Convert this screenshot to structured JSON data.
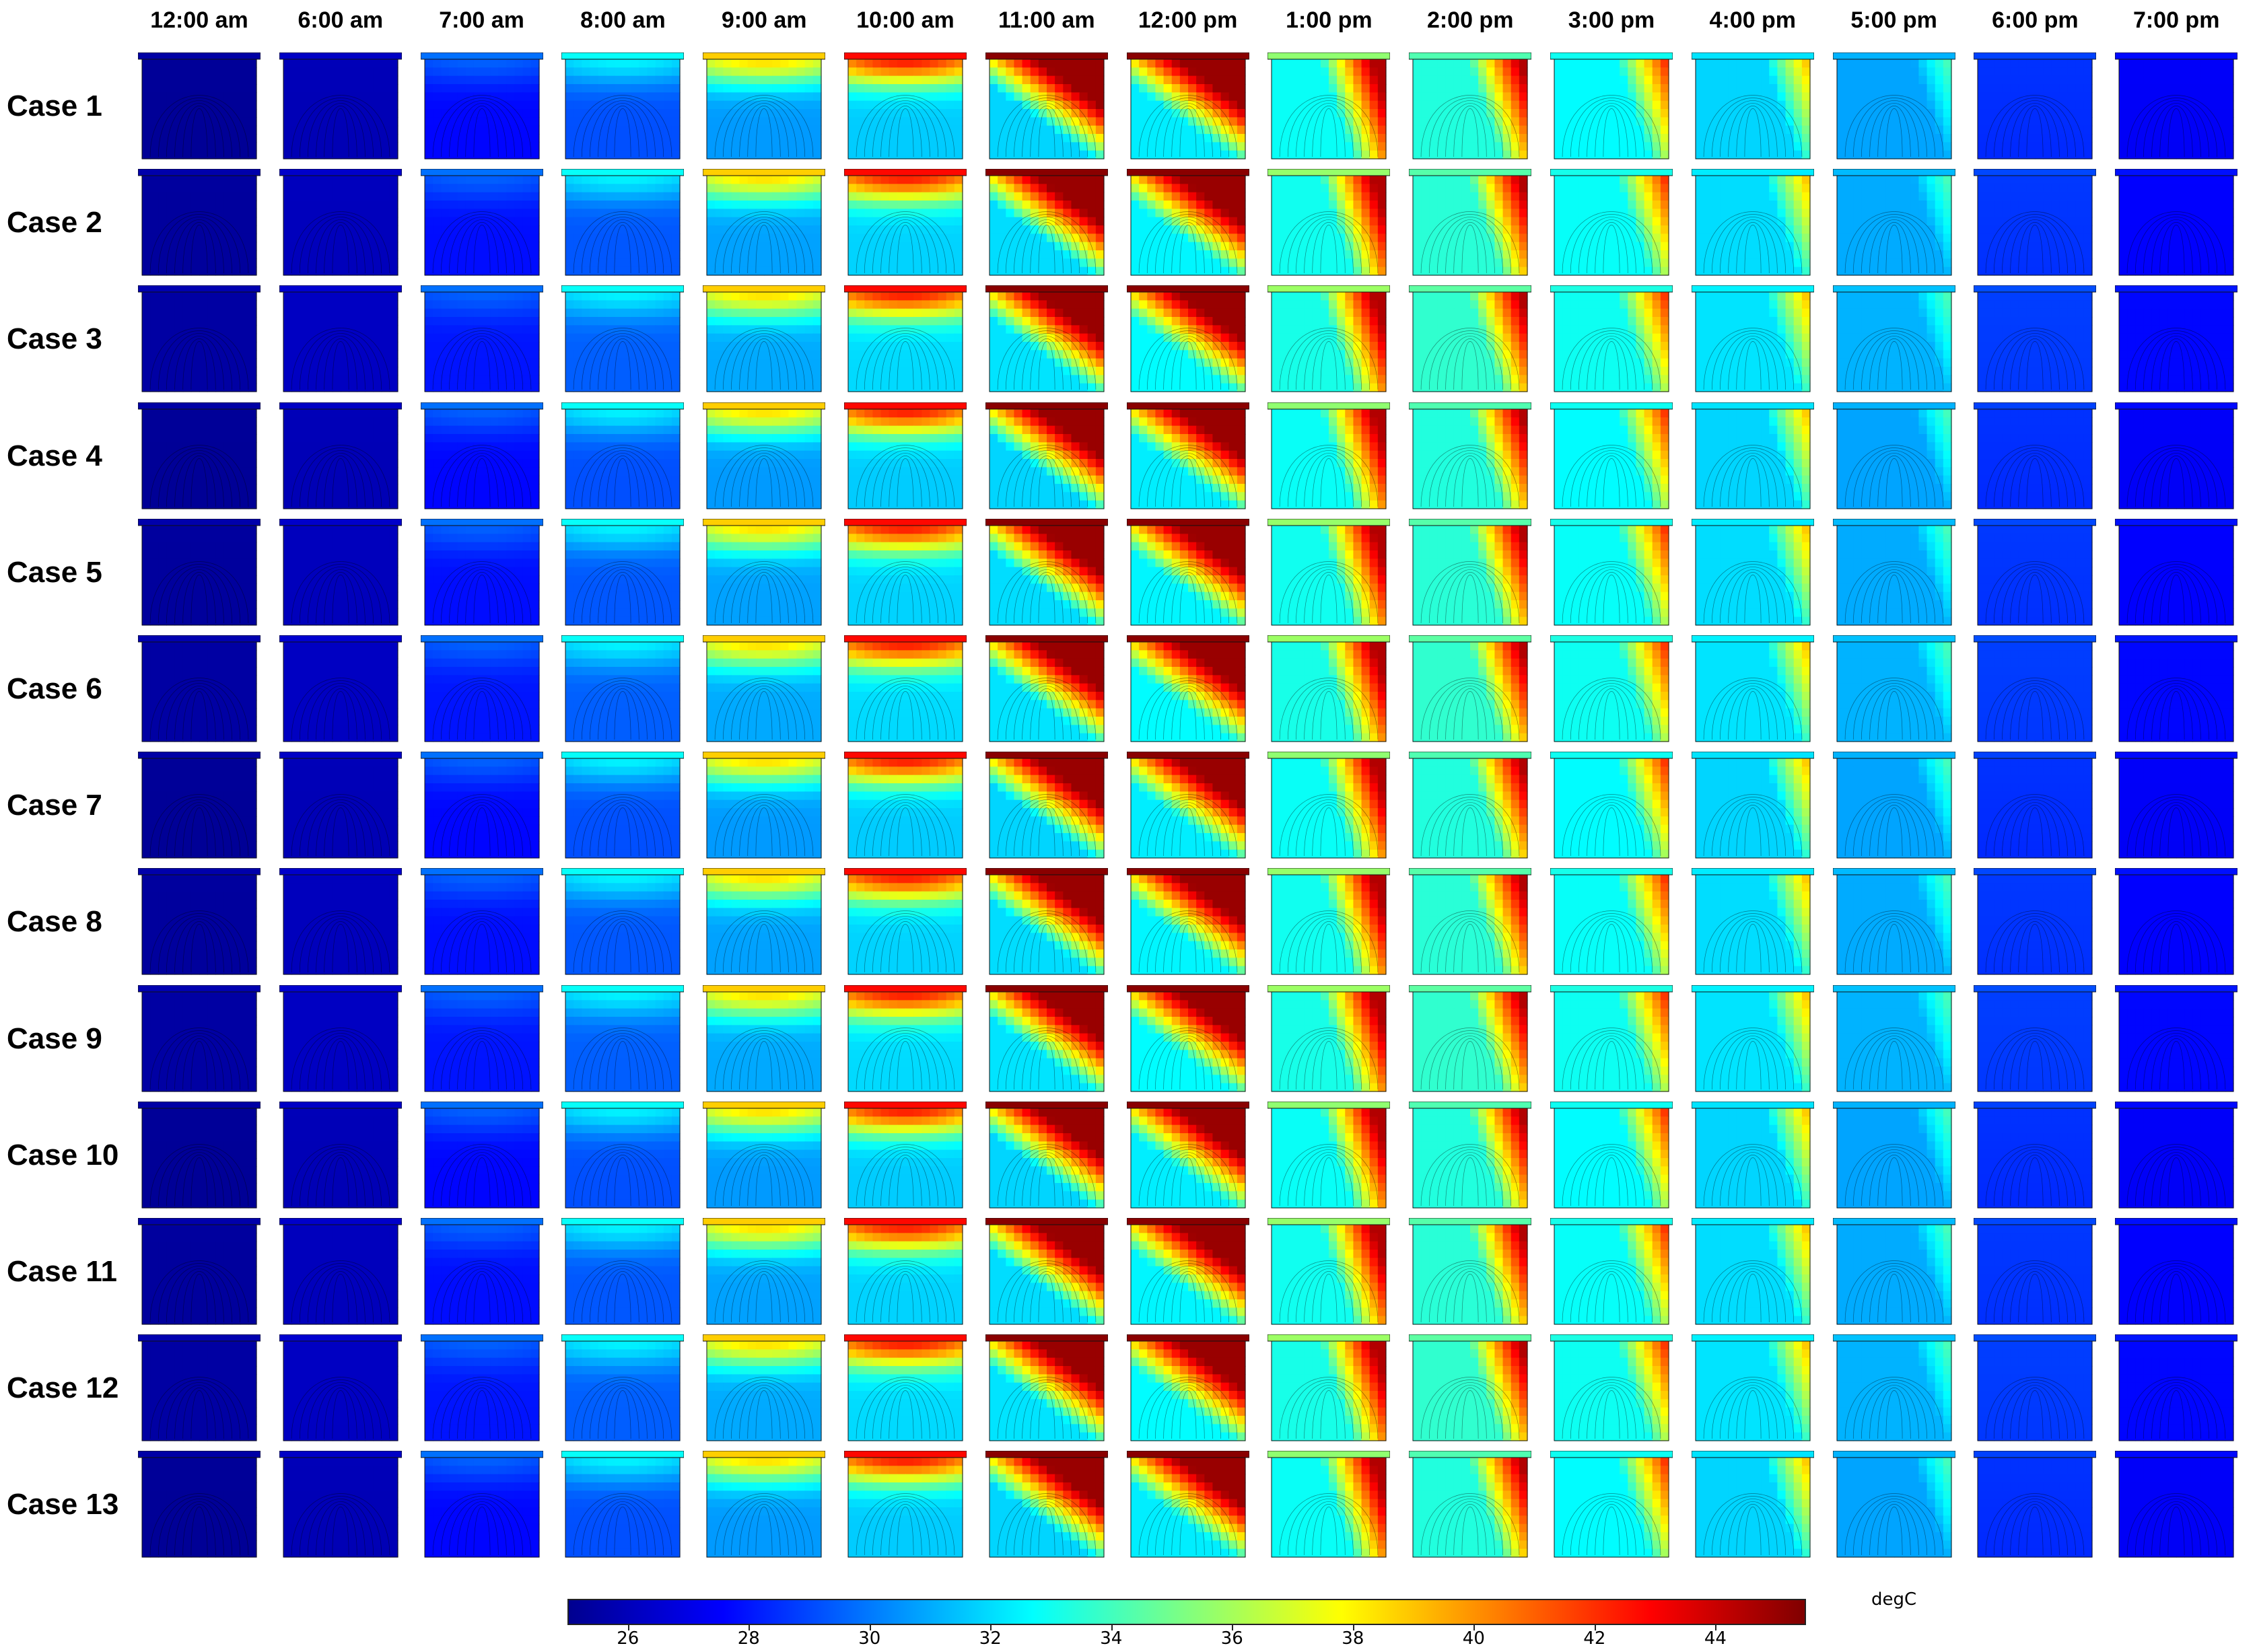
{
  "figure": {
    "time_labels": [
      "12:00 am",
      "6:00 am",
      "7:00 am",
      "8:00 am",
      "9:00 am",
      "10:00 am",
      "11:00 am",
      "12:00 pm",
      "1:00 pm",
      "2:00 pm",
      "3:00 pm",
      "4:00 pm",
      "5:00 pm",
      "6:00 pm",
      "7:00 pm"
    ],
    "case_labels": [
      "Case 1",
      "Case 2",
      "Case 3",
      "Case 4",
      "Case 5",
      "Case 6",
      "Case 7",
      "Case 8",
      "Case 9",
      "Case 10",
      "Case 11",
      "Case 12",
      "Case 13"
    ],
    "colormap": {
      "unit": "degC",
      "min": 25,
      "max": 45.5,
      "ticks": [
        26,
        28,
        30,
        32,
        34,
        36,
        38,
        40,
        42,
        44
      ],
      "stops": [
        "#00008f",
        "#0000ff",
        "#0080ff",
        "#00ffff",
        "#80ff80",
        "#ffff00",
        "#ff8000",
        "#ff0000",
        "#800000"
      ]
    },
    "field_pattern": {
      "description": "Temperature fields with streamlines per time step (columns) for each case (rows).",
      "hot_location_by_time": [
        "none",
        "none",
        "top",
        "top",
        "top",
        "top",
        "top-right",
        "top-right",
        "right",
        "right",
        "right",
        "right",
        "right",
        "none",
        "none"
      ],
      "max_temp_by_time": [
        25.5,
        26.3,
        29.5,
        32.5,
        38.5,
        42.5,
        45,
        45,
        44.5,
        44.5,
        42.5,
        40.5,
        35.5,
        29.5,
        27.8
      ],
      "base_temp_by_time": [
        25.3,
        26.0,
        27.8,
        29.3,
        30.8,
        31.8,
        32.0,
        32.5,
        33.0,
        33.5,
        32.8,
        32.0,
        31.0,
        28.5,
        27.5
      ]
    }
  }
}
